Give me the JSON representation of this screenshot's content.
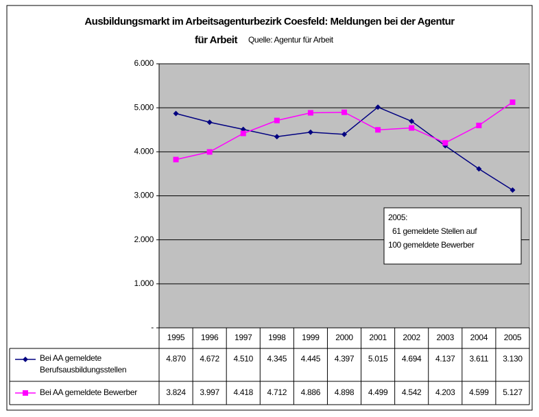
{
  "chart_data": {
    "type": "line",
    "title": [
      "Ausbildungsmarkt im Arbeitsagenturbezirk Coesfeld: Meldungen bei der Agentur",
      "für Arbeit"
    ],
    "subtitle": "Quelle: Agentur für Arbeit",
    "categories": [
      "1995",
      "1996",
      "1997",
      "1998",
      "1999",
      "2000",
      "2001",
      "2002",
      "2003",
      "2004",
      "2005"
    ],
    "series": [
      {
        "name": "Bei AA gemeldete Berufsausbildungsstellen",
        "color": "#000080",
        "marker": "diamond",
        "values": [
          4870,
          4672,
          4510,
          4345,
          4445,
          4397,
          5015,
          4694,
          4137,
          3611,
          3130
        ],
        "value_labels": [
          "4.870",
          "4.672",
          "4.510",
          "4.345",
          "4.445",
          "4.397",
          "5.015",
          "4.694",
          "4.137",
          "3.611",
          "3.130"
        ]
      },
      {
        "name": "Bei AA gemeldete Bewerber",
        "color": "#ff00ff",
        "marker": "square",
        "values": [
          3824,
          3997,
          4418,
          4712,
          4886,
          4898,
          4499,
          4542,
          4203,
          4599,
          5127
        ],
        "value_labels": [
          "3.824",
          "3.997",
          "4.418",
          "4.712",
          "4.886",
          "4.898",
          "4.499",
          "4.542",
          "4.203",
          "4.599",
          "5.127"
        ]
      }
    ],
    "ylim": [
      0,
      6000
    ],
    "yticks": [
      {
        "value": 0,
        "label": "-"
      },
      {
        "value": 1000,
        "label": "1.000"
      },
      {
        "value": 2000,
        "label": "2.000"
      },
      {
        "value": 3000,
        "label": "3.000"
      },
      {
        "value": 4000,
        "label": "4.000"
      },
      {
        "value": 5000,
        "label": "5.000"
      },
      {
        "value": 6000,
        "label": "6.000"
      }
    ],
    "grid": true,
    "plot_background": "#c0c0c0",
    "annotation": [
      "2005:",
      "61 gemeldete Stellen auf",
      "100 gemeldete Bewerber"
    ]
  }
}
